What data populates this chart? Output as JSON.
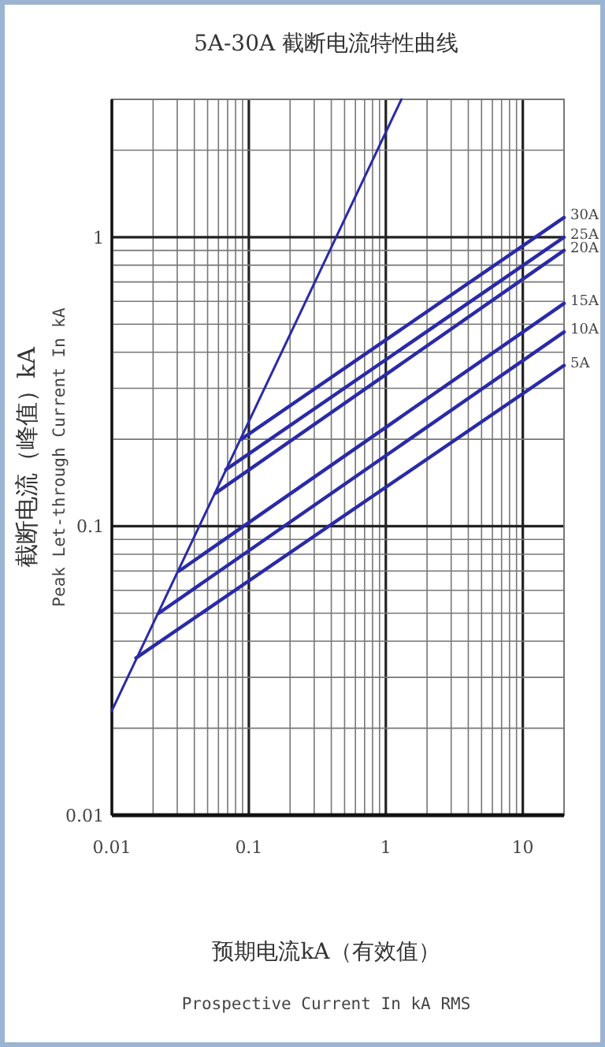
{
  "chart_data": {
    "type": "line",
    "title": "5A-30A 截断电流特性曲线",
    "xlabel": "预期电流kA（有效值）",
    "ylabel": "截断电流（峰值）kA",
    "annotations": [
      "Peak Let-through Current In kA",
      "Prospective Current In kA RMS"
    ],
    "log": "xy",
    "grid": true,
    "line_style": "solid",
    "xlim": [
      0.01,
      20
    ],
    "ylim": [
      0.01,
      3
    ],
    "xticks": [
      0.01,
      0.1,
      1,
      10
    ],
    "yticks": [
      0.01,
      0.1,
      1
    ],
    "series": [
      {
        "color": "#2a2aa8",
        "x": [
          0.01,
          1.3
        ],
        "values": [
          0.023,
          3
        ]
      },
      {
        "name": "30A",
        "color": "#2a2aa8",
        "x": [
          0.088,
          20
        ],
        "values": [
          0.2,
          1.17
        ]
      },
      {
        "name": "25A",
        "color": "#2a2aa8",
        "x": [
          0.068,
          20
        ],
        "values": [
          0.157,
          1.0
        ]
      },
      {
        "name": "20A",
        "color": "#2a2aa8",
        "x": [
          0.057,
          20
        ],
        "values": [
          0.13,
          0.9
        ]
      },
      {
        "name": "15A",
        "color": "#2a2aa8",
        "x": [
          0.031,
          20
        ],
        "values": [
          0.07,
          0.59
        ]
      },
      {
        "name": "10A",
        "color": "#2a2aa8",
        "x": [
          0.022,
          20
        ],
        "values": [
          0.05,
          0.47
        ]
      },
      {
        "name": "5A",
        "color": "#2a2aa8",
        "x": [
          0.015,
          20
        ],
        "values": [
          0.035,
          0.36
        ]
      }
    ]
  }
}
